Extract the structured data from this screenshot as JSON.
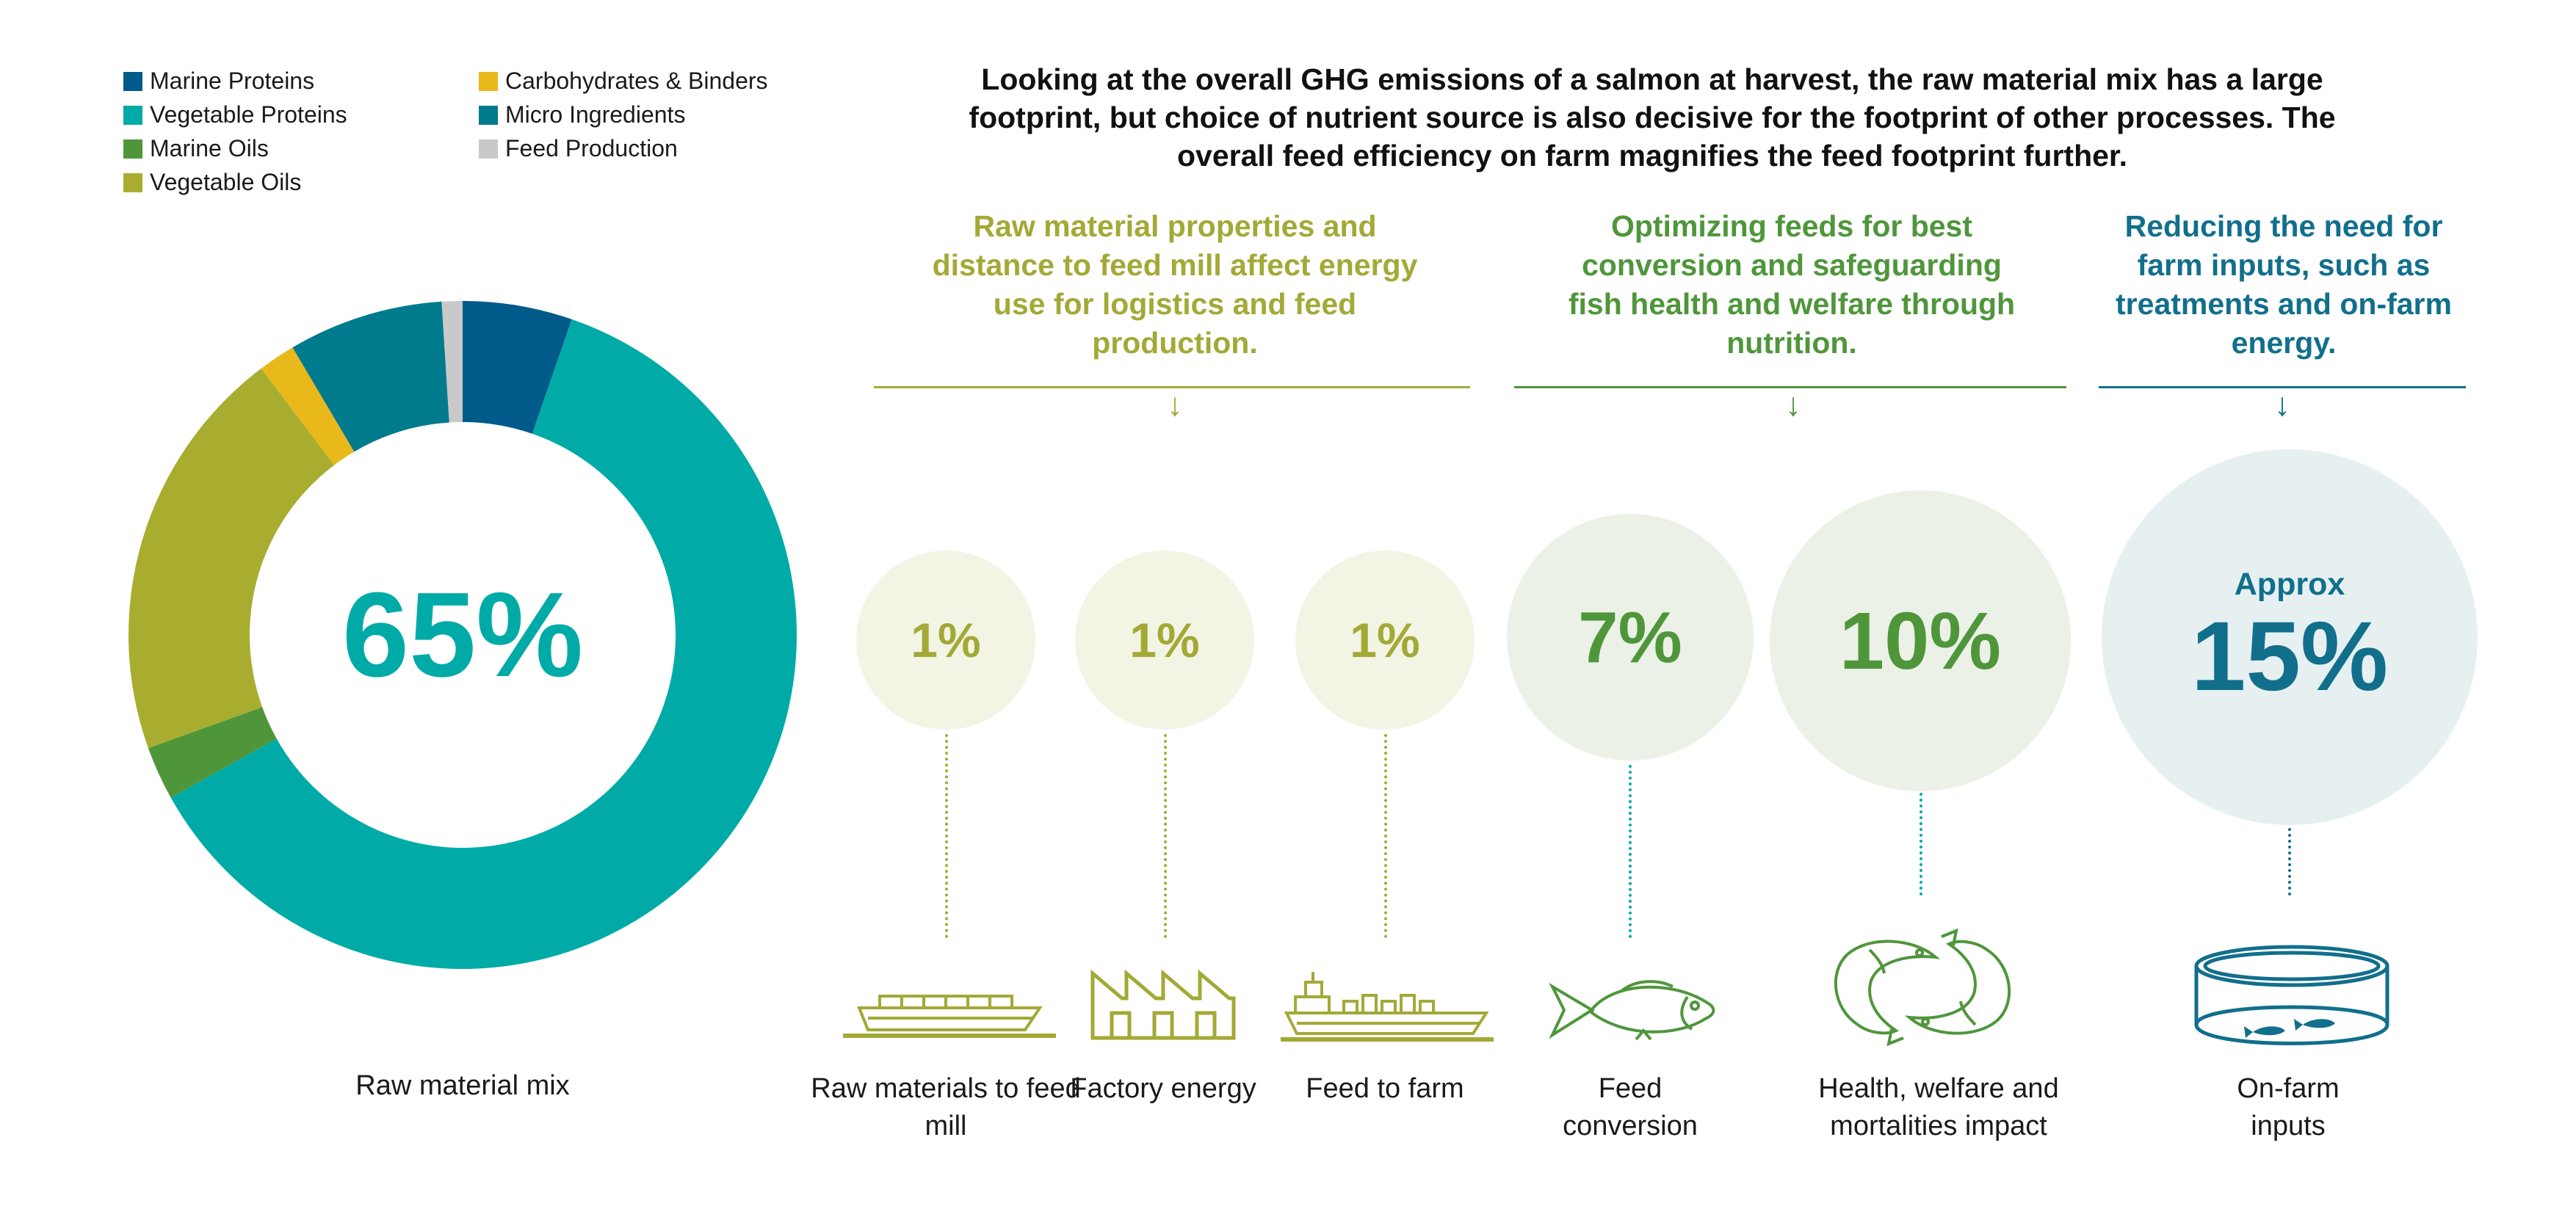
{
  "legend": [
    {
      "label": "Marine Proteins",
      "color": "#005b8a"
    },
    {
      "label": "Vegetable Proteins",
      "color": "#00aba7"
    },
    {
      "label": "Marine Oils",
      "color": "#4f963b"
    },
    {
      "label": "Vegetable Oils",
      "color": "#a9ad2f"
    },
    {
      "label": "Carbohydrates & Binders",
      "color": "#e9b81b"
    },
    {
      "label": "Micro Ingredients",
      "color": "#007a8d"
    },
    {
      "label": "Feed Production",
      "color": "#c9c9c9"
    }
  ],
  "intro": "Looking at the overall GHG emissions of a salmon at harvest, the raw material mix has a large footprint, but choice of nutrient source is also decisive for the footprint of other processes.  The overall feed efficiency on farm magnifies the feed footprint further.",
  "donut": {
    "center_value": "65%",
    "label": "Raw material mix",
    "colors": {
      "marine_proteins": "#005b8a",
      "vegetable_proteins": "#00aba7",
      "marine_oils": "#4f963b",
      "vegetable_oils": "#a9ad2f",
      "carbohydrates": "#e9b81b",
      "micro": "#007a8d",
      "feed_production": "#c9c9c9"
    }
  },
  "groups": [
    {
      "title": "Raw material properties and distance to feed mill affect energy use for logistics and feed production.",
      "color": "#a3a936"
    },
    {
      "title": "Optimizing feeds for best conversion and safeguarding fish health and welfare through nutrition.",
      "color": "#4f963b"
    },
    {
      "title": "Reducing the need for farm inputs, such as treatments and on-farm energy.",
      "color": "#116f8c"
    }
  ],
  "arrow_glyph": "↓",
  "items": [
    {
      "value": "1%",
      "label": "Raw materials to feed mill",
      "icon": "cargo-ship-icon"
    },
    {
      "value": "1%",
      "label": "Factory energy",
      "icon": "factory-icon"
    },
    {
      "value": "1%",
      "label": "Feed to farm",
      "icon": "feed-vessel-icon"
    },
    {
      "value": "7%",
      "label": "Feed conversion",
      "icon": "fish-icon"
    },
    {
      "value": "10%",
      "label": "Health, welfare and mortalities impact",
      "icon": "two-salmon-icon"
    },
    {
      "prefix": "Approx",
      "value": "15%",
      "label": "On-farm inputs",
      "icon": "fish-pen-icon"
    }
  ],
  "chart_data": {
    "type": "pie",
    "title": "",
    "categories": [
      "Marine Proteins",
      "Vegetable Proteins",
      "Marine Oils",
      "Vegetable Oils",
      "Carbohydrates & Binders",
      "Micro Ingredients",
      "Feed Production"
    ],
    "values": [
      5.3,
      61.6,
      2.6,
      20.2,
      1.8,
      7.5,
      1.0
    ],
    "center_label": "65%"
  }
}
